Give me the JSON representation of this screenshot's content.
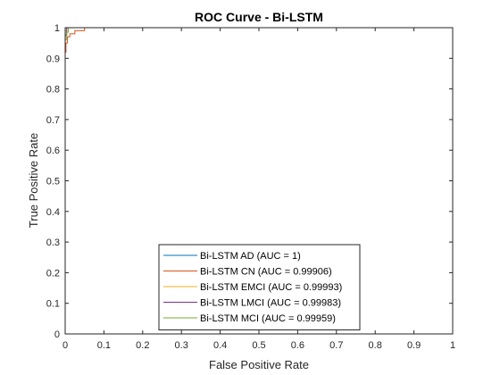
{
  "chart_data": {
    "type": "line",
    "title": "ROC Curve - Bi-LSTM",
    "xlabel": "False Positive Rate",
    "ylabel": "True Positive Rate",
    "xlim": [
      0,
      1
    ],
    "ylim": [
      0,
      1
    ],
    "xticks": [
      "0",
      "0.1",
      "0.2",
      "0.3",
      "0.4",
      "0.5",
      "0.6",
      "0.7",
      "0.8",
      "0.9",
      "1"
    ],
    "yticks": [
      "0",
      "0.1",
      "0.2",
      "0.3",
      "0.4",
      "0.5",
      "0.6",
      "0.7",
      "0.8",
      "0.9",
      "1"
    ],
    "grid": false,
    "legend_position": "bottom-center",
    "series": [
      {
        "name": "Bi-LSTM AD (AUC = 1)",
        "color": "#0072BD",
        "x": [
          0,
          0,
          1
        ],
        "y": [
          0,
          1,
          1
        ]
      },
      {
        "name": "Bi-LSTM CN (AUC = 0.99906)",
        "color": "#D95319",
        "x": [
          0,
          0,
          0.002,
          0.002,
          0.006,
          0.006,
          0.012,
          0.012,
          0.025,
          0.025,
          0.05,
          0.05,
          1
        ],
        "y": [
          0,
          0.92,
          0.92,
          0.95,
          0.95,
          0.97,
          0.97,
          0.98,
          0.98,
          0.99,
          0.99,
          1,
          1
        ]
      },
      {
        "name": "Bi-LSTM EMCI (AUC = 0.99993)",
        "color": "#EDB120",
        "x": [
          0,
          0,
          0.004,
          0.004,
          1
        ],
        "y": [
          0,
          0.99,
          0.99,
          1,
          1
        ]
      },
      {
        "name": "Bi-LSTM LMCI (AUC = 0.99983)",
        "color": "#7E2F8E",
        "x": [
          0,
          0,
          0.004,
          0.004,
          1
        ],
        "y": [
          0,
          0.975,
          0.975,
          1,
          1
        ]
      },
      {
        "name": "Bi-LSTM MCI (AUC = 0.99959)",
        "color": "#77AC30",
        "x": [
          0,
          0,
          0.003,
          0.003,
          0.008,
          0.008,
          1
        ],
        "y": [
          0,
          0.96,
          0.96,
          0.985,
          0.985,
          1,
          1
        ]
      }
    ]
  }
}
